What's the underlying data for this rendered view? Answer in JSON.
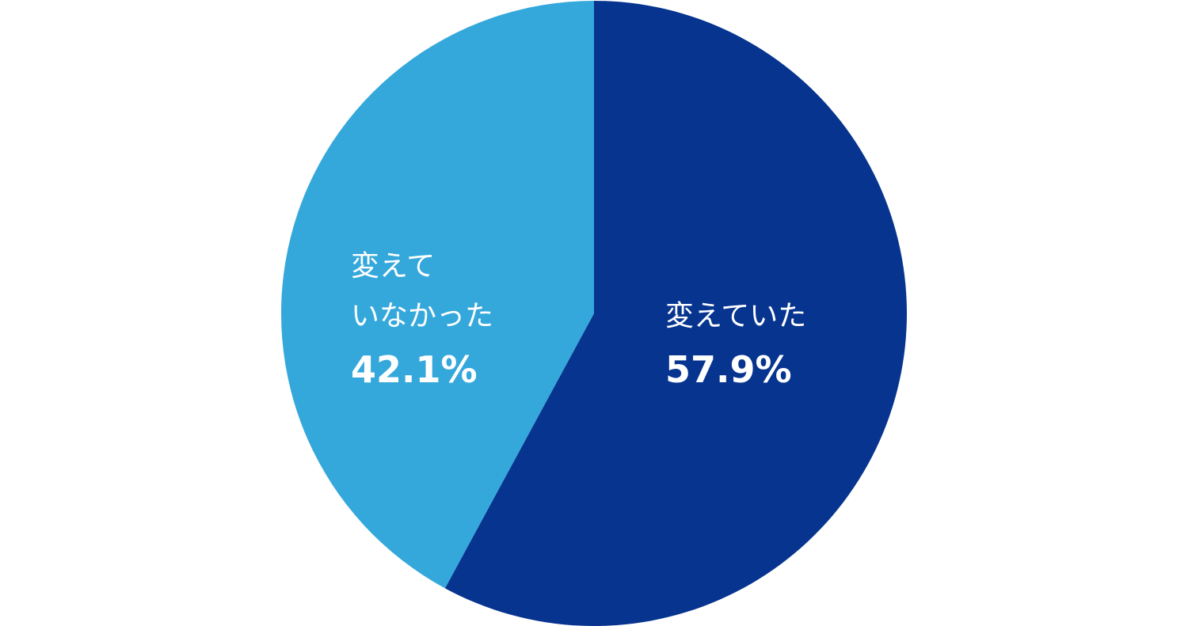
{
  "chart_data": {
    "type": "pie",
    "categories": [
      "変えていた",
      "変えて\nいなかった"
    ],
    "values": [
      57.9,
      42.1
    ],
    "value_labels": [
      "57.9%",
      "42.1%"
    ],
    "colors": [
      "#06348f",
      "#35a8db"
    ]
  }
}
